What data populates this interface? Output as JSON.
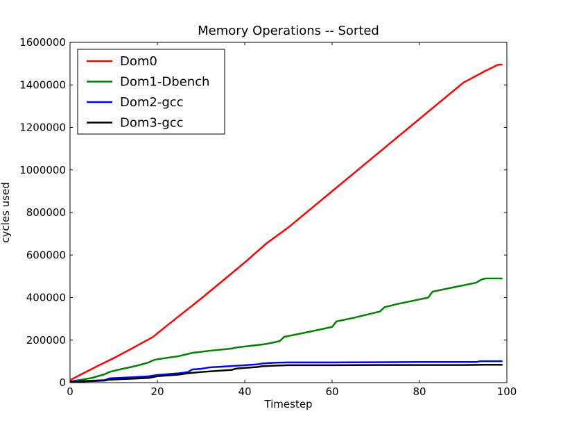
{
  "chart_data": {
    "type": "line",
    "title": "Memory Operations -- Sorted",
    "xlabel": "Timestep",
    "ylabel": "cycles used",
    "xlim": [
      0,
      100
    ],
    "ylim": [
      0,
      1600000
    ],
    "xticks": [
      0,
      20,
      40,
      60,
      80,
      100
    ],
    "xtick_labels": [
      "0",
      "20",
      "40",
      "60",
      "80",
      "100"
    ],
    "yticks": [
      0,
      200000,
      400000,
      600000,
      800000,
      1000000,
      1200000,
      1400000,
      1600000
    ],
    "ytick_labels": [
      "0",
      "200000",
      "400000",
      "600000",
      "800000",
      "1000000",
      "1200000",
      "1400000",
      "1600000"
    ],
    "grid": false,
    "legend_position": "top-left",
    "series": [
      {
        "name": "Dom0",
        "color": "#ff0000",
        "x": [
          0,
          6,
          10,
          15,
          19,
          22,
          26,
          30,
          35,
          40,
          45,
          50,
          60,
          70,
          80,
          90,
          95,
          98,
          99
        ],
        "y": [
          12000,
          75000,
          115000,
          170000,
          215000,
          265000,
          330000,
          395000,
          480000,
          565000,
          655000,
          730000,
          900000,
          1070000,
          1240000,
          1410000,
          1465000,
          1495000,
          1495000
        ]
      },
      {
        "name": "Dom1-Dbench",
        "color": "#008000",
        "x": [
          0,
          5,
          8,
          9,
          12,
          15,
          18,
          19,
          20,
          25,
          27,
          28,
          30,
          32,
          37,
          38,
          45,
          48,
          49,
          55,
          60,
          61,
          65,
          71,
          72,
          75,
          82,
          83,
          87,
          93,
          94,
          95,
          99
        ],
        "y": [
          5000,
          22000,
          40000,
          50000,
          65000,
          78000,
          95000,
          105000,
          110000,
          125000,
          135000,
          140000,
          145000,
          150000,
          160000,
          165000,
          182000,
          195000,
          215000,
          240000,
          262000,
          288000,
          305000,
          335000,
          355000,
          370000,
          400000,
          428000,
          445000,
          470000,
          483000,
          490000,
          490000
        ]
      },
      {
        "name": "Dom2-gcc",
        "color": "#0000ff",
        "x": [
          0,
          8,
          9,
          15,
          18,
          20,
          25,
          27,
          28,
          30,
          32,
          37,
          43,
          44,
          47,
          50,
          60,
          70,
          80,
          93,
          94,
          99
        ],
        "y": [
          5000,
          12000,
          20000,
          26000,
          30000,
          36000,
          44000,
          50000,
          62000,
          65000,
          72000,
          78000,
          86000,
          90000,
          94000,
          95000,
          95000,
          96000,
          97000,
          97000,
          101000,
          101000
        ]
      },
      {
        "name": "Dom3-gcc",
        "color": "#000000",
        "x": [
          0,
          8,
          9,
          15,
          18,
          20,
          25,
          27,
          30,
          37,
          38,
          43,
          44,
          47,
          50,
          60,
          70,
          80,
          90,
          95,
          99
        ],
        "y": [
          3000,
          10000,
          14000,
          19000,
          22000,
          30000,
          38000,
          44000,
          50000,
          60000,
          66000,
          74000,
          77000,
          80000,
          82000,
          82000,
          83000,
          83000,
          83000,
          84000,
          84000
        ]
      }
    ]
  }
}
